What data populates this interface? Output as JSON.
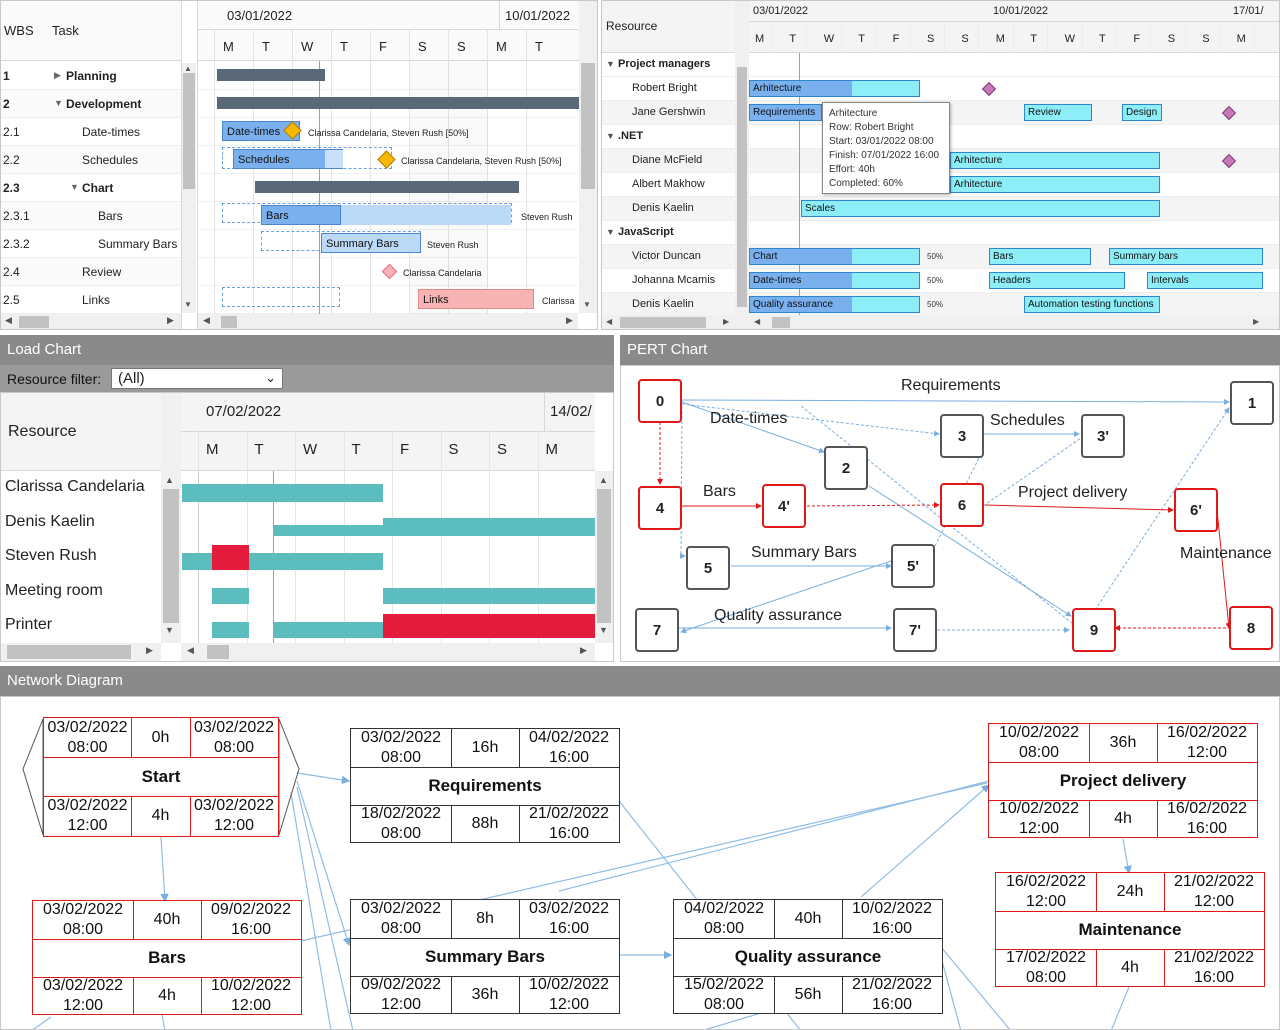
{
  "gantt": {
    "col_wbs": "WBS",
    "col_task": "Task",
    "dates": [
      "03/01/2022",
      "10/01/2022"
    ],
    "days": [
      "M",
      "T",
      "W",
      "T",
      "F",
      "S",
      "S",
      "M",
      "T"
    ],
    "rows": [
      {
        "wbs": "1",
        "task": "Planning"
      },
      {
        "wbs": "2",
        "task": "Development"
      },
      {
        "wbs": "2.1",
        "task": "Date-times"
      },
      {
        "wbs": "2.2",
        "task": "Schedules"
      },
      {
        "wbs": "2.3",
        "task": "Chart"
      },
      {
        "wbs": "2.3.1",
        "task": "Bars"
      },
      {
        "wbs": "2.3.2",
        "task": "Summary Bars"
      },
      {
        "wbs": "2.4",
        "task": "Review"
      },
      {
        "wbs": "2.5",
        "task": "Links"
      }
    ],
    "bars": {
      "datetimes": "Date-times",
      "schedules": "Schedules",
      "bars": "Bars",
      "summary": "Summary Bars",
      "links": "Links"
    },
    "assignees": {
      "datetimes": "Clarissa Candelaria, Steven Rush [50%]",
      "schedules": "Clarissa Candelaria, Steven Rush [50%]",
      "bars": "Steven Rush",
      "summary": "Steven Rush",
      "review": "Clarissa Candelaria",
      "links": "Clarissa"
    }
  },
  "schedule": {
    "col_resource": "Resource",
    "dates": [
      "03/01/2022",
      "10/01/2022",
      "17/01/"
    ],
    "days": [
      "M",
      "T",
      "W",
      "T",
      "F",
      "S",
      "S",
      "M",
      "T",
      "W",
      "T",
      "F",
      "S",
      "S",
      "M"
    ],
    "groups": [
      {
        "name": "Project managers",
        "people": [
          "Robert Bright",
          "Jane Gershwin"
        ]
      },
      {
        "name": ".NET",
        "people": [
          "Diane McField",
          "Albert Makhow",
          "Denis Kaelin"
        ]
      },
      {
        "name": "JavaScript",
        "people": [
          "Victor Duncan",
          "Johanna Mcamis",
          "Denis Kaelin"
        ]
      }
    ],
    "bars": {
      "arhitecture": "Arhitecture",
      "requirements": "Requirements",
      "review": "Review",
      "design": "Design",
      "scales": "Scales",
      "chart": "Chart",
      "bars": "Bars",
      "summary": "Summary bars",
      "datetimes": "Date-times",
      "headers": "Headers",
      "intervals": "Intervals",
      "qa": "Quality assurance",
      "automation": "Automation testing functions"
    },
    "percent": "50%",
    "tooltip": {
      "title": "Arhitecture",
      "row": "Row: Robert Bright",
      "start": "Start: 03/01/2022 08:00",
      "finish": "Finish: 07/01/2022 16:00",
      "effort": "Effort: 40h",
      "completed": "Completed: 60%"
    }
  },
  "load": {
    "title": "Load Chart",
    "filter_label": "Resource filter:",
    "filter_value": "(All)",
    "col_resource": "Resource",
    "dates": [
      "07/02/2022",
      "14/02/"
    ],
    "days": [
      "M",
      "T",
      "W",
      "T",
      "F",
      "S",
      "S",
      "M"
    ],
    "resources": [
      "Clarissa Candelaria",
      "Denis Kaelin",
      "Steven Rush",
      "Meeting room",
      "Printer"
    ]
  },
  "pert": {
    "title": "PERT Chart",
    "nodes": [
      "0",
      "1",
      "2",
      "3",
      "3'",
      "4",
      "4'",
      "5",
      "5'",
      "6",
      "6'",
      "7",
      "7'",
      "8",
      "9"
    ],
    "labels": {
      "requirements": "Requirements",
      "datetimes": "Date-times",
      "schedules": "Schedules",
      "bars": "Bars",
      "project_delivery": "Project delivery",
      "summary_bars": "Summary Bars",
      "maintenance": "Maintenance",
      "qa": "Quality assurance"
    }
  },
  "network": {
    "title": "Network Diagram",
    "boxes": {
      "start": {
        "es": "03/02/2022\n08:00",
        "dur": "0h",
        "ef": "03/02/2022\n08:00",
        "name": "Start",
        "ls": "03/02/2022\n12:00",
        "slack": "4h",
        "lf": "03/02/2022\n12:00"
      },
      "requirements": {
        "es": "03/02/2022\n08:00",
        "dur": "16h",
        "ef": "04/02/2022\n16:00",
        "name": "Requirements",
        "ls": "18/02/2022\n08:00",
        "slack": "88h",
        "lf": "21/02/2022\n16:00"
      },
      "project_delivery": {
        "es": "10/02/2022\n08:00",
        "dur": "36h",
        "ef": "16/02/2022\n12:00",
        "name": "Project delivery",
        "ls": "10/02/2022\n12:00",
        "slack": "4h",
        "lf": "16/02/2022\n16:00"
      },
      "maintenance": {
        "es": "16/02/2022\n12:00",
        "dur": "24h",
        "ef": "21/02/2022\n12:00",
        "name": "Maintenance",
        "ls": "17/02/2022\n08:00",
        "slack": "4h",
        "lf": "21/02/2022\n16:00"
      },
      "bars": {
        "es": "03/02/2022\n08:00",
        "dur": "40h",
        "ef": "09/02/2022\n16:00",
        "name": "Bars",
        "ls": "03/02/2022\n12:00",
        "slack": "4h",
        "lf": "10/02/2022\n12:00"
      },
      "summary_bars": {
        "es": "03/02/2022\n08:00",
        "dur": "8h",
        "ef": "03/02/2022\n16:00",
        "name": "Summary Bars",
        "ls": "09/02/2022\n12:00",
        "slack": "36h",
        "lf": "10/02/2022\n12:00"
      },
      "qa": {
        "es": "04/02/2022\n08:00",
        "dur": "40h",
        "ef": "10/02/2022\n16:00",
        "name": "Quality assurance",
        "ls": "15/02/2022\n08:00",
        "slack": "56h",
        "lf": "21/02/2022\n16:00"
      }
    }
  },
  "colors": {
    "critical": "#e01818",
    "normal": "#555555",
    "link": "#7aaee0",
    "load_ok": "#5bbdbd",
    "load_over": "#e31c3d",
    "task_bar": "#7ab0ee",
    "summary": "#5b6878"
  }
}
